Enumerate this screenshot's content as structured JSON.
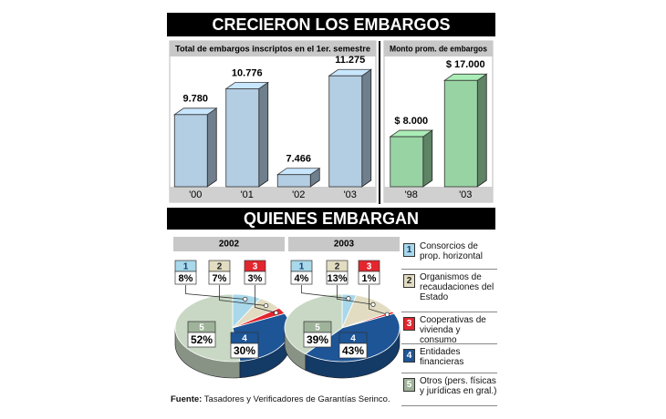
{
  "headers": [
    "CRECIERON LOS EMBARGOS",
    "QUIENES EMBARGAN"
  ],
  "chart_data": [
    {
      "type": "bar",
      "title": "Total de embargos inscriptos en el 1er. semestre",
      "categories": [
        "'00",
        "'01",
        "'02",
        "'03"
      ],
      "values": [
        9780,
        10776,
        7466,
        11275
      ],
      "value_labels": [
        "9.780",
        "10.776",
        "7.466",
        "11.275"
      ],
      "color": "#b3cde3",
      "ylim": [
        7000,
        11600
      ]
    },
    {
      "type": "bar",
      "title": "Monto prom. de embargos",
      "categories": [
        "'98",
        "'03"
      ],
      "values": [
        8000,
        17000
      ],
      "value_labels": [
        "$ 8.000",
        "$ 17.000"
      ],
      "color": "#98d4a3",
      "ylim": [
        0,
        18500
      ]
    },
    {
      "type": "pie",
      "title": "2002",
      "categories": [
        "1",
        "2",
        "3",
        "4",
        "5"
      ],
      "values": [
        8,
        7,
        3,
        30,
        52
      ],
      "value_labels": [
        "8%",
        "7%",
        "3%",
        "30%",
        "52%"
      ],
      "colors": [
        "#a8d8ea",
        "#e2ddc2",
        "#e3262e",
        "#1d5596",
        "#c8d8c4"
      ]
    },
    {
      "type": "pie",
      "title": "2003",
      "categories": [
        "1",
        "2",
        "3",
        "4",
        "5"
      ],
      "values": [
        4,
        13,
        1,
        43,
        39
      ],
      "value_labels": [
        "4%",
        "13%",
        "1%",
        "43%",
        "39%"
      ],
      "colors": [
        "#a8d8ea",
        "#e2ddc2",
        "#e3262e",
        "#1d5596",
        "#c8d8c4"
      ]
    }
  ],
  "legend": [
    {
      "number": "1",
      "label": "Consorcios de prop. horizontal"
    },
    {
      "number": "2",
      "label": "Organismos de recaudaciones del Estado"
    },
    {
      "number": "3",
      "label": "Cooperativas de vivienda y consumo"
    },
    {
      "number": "4",
      "label": "Entidades financieras"
    },
    {
      "number": "5",
      "label": "Otros (pers. físicas y jurídicas en gral.)"
    }
  ],
  "source": {
    "label": "Fuente:",
    "text": "Tasadores y Verificadores de Garantías Serinco."
  }
}
